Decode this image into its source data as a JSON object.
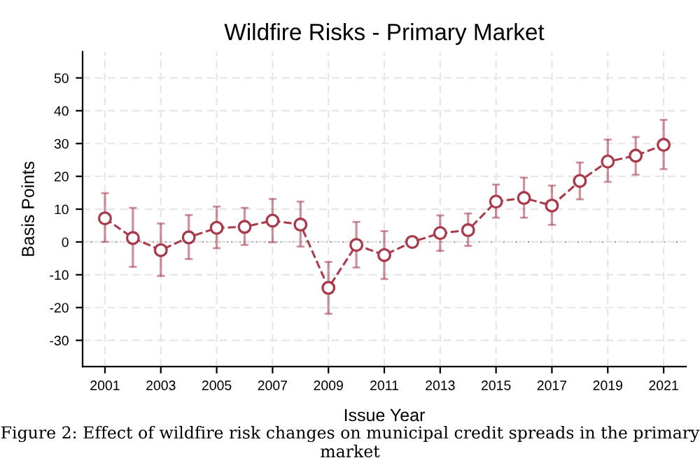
{
  "chart_data": {
    "type": "line",
    "title": "Wildfire Risks - Primary Market",
    "xlabel": "Issue Year",
    "ylabel": "Basis Points",
    "x": [
      2001,
      2002,
      2003,
      2004,
      2005,
      2006,
      2007,
      2008,
      2009,
      2010,
      2011,
      2012,
      2013,
      2014,
      2015,
      2016,
      2017,
      2018,
      2019,
      2020,
      2021
    ],
    "series": [
      {
        "color": "#a83a4a",
        "values": [
          7.2,
          1.2,
          -2.5,
          1.4,
          4.3,
          4.6,
          6.5,
          5.3,
          -14,
          -0.9,
          -4.0,
          0,
          2.7,
          3.6,
          12.3,
          13.4,
          11.1,
          18.6,
          24.5,
          26.3,
          29.6
        ],
        "errors": [
          [
            0,
            14.9
          ],
          [
            -7.6,
            10.4
          ],
          [
            -10.4,
            5.6
          ],
          [
            -5.2,
            8.2
          ],
          [
            -1.9,
            10.8
          ],
          [
            -0.9,
            10.4
          ],
          [
            -0.1,
            13.1
          ],
          [
            -1.4,
            12.3
          ],
          [
            -21.9,
            -6.1
          ],
          [
            -7.8,
            6.1
          ],
          [
            -11.3,
            3.3
          ],
          null,
          [
            -2.7,
            8.1
          ],
          [
            -1.2,
            8.7
          ],
          [
            7.4,
            17.5
          ],
          [
            7.4,
            19.6
          ],
          [
            5.2,
            17.2
          ],
          [
            13,
            24.2
          ],
          [
            18.3,
            31.2
          ],
          [
            20.5,
            32
          ],
          [
            22.2,
            37.2
          ]
        ]
      }
    ],
    "marker": "circle",
    "line_style": "dashed",
    "grid": true,
    "xlim": [
      2000.2,
      2021.8
    ],
    "xticks": [
      2001,
      2003,
      2005,
      2007,
      2009,
      2011,
      2013,
      2015,
      2017,
      2019,
      2021
    ],
    "ylim": [
      -38,
      58
    ],
    "yticks": [
      -30,
      -20,
      -10,
      0,
      10,
      20,
      30,
      40,
      50
    ],
    "ref_lines": [
      {
        "axis": "y",
        "value": 0,
        "color": "#999999",
        "line_style": "dotted"
      }
    ],
    "annotations": [
      "Figure 2: Effect of wildfire risk changes on municipal credit spreads in the primary market"
    ]
  }
}
